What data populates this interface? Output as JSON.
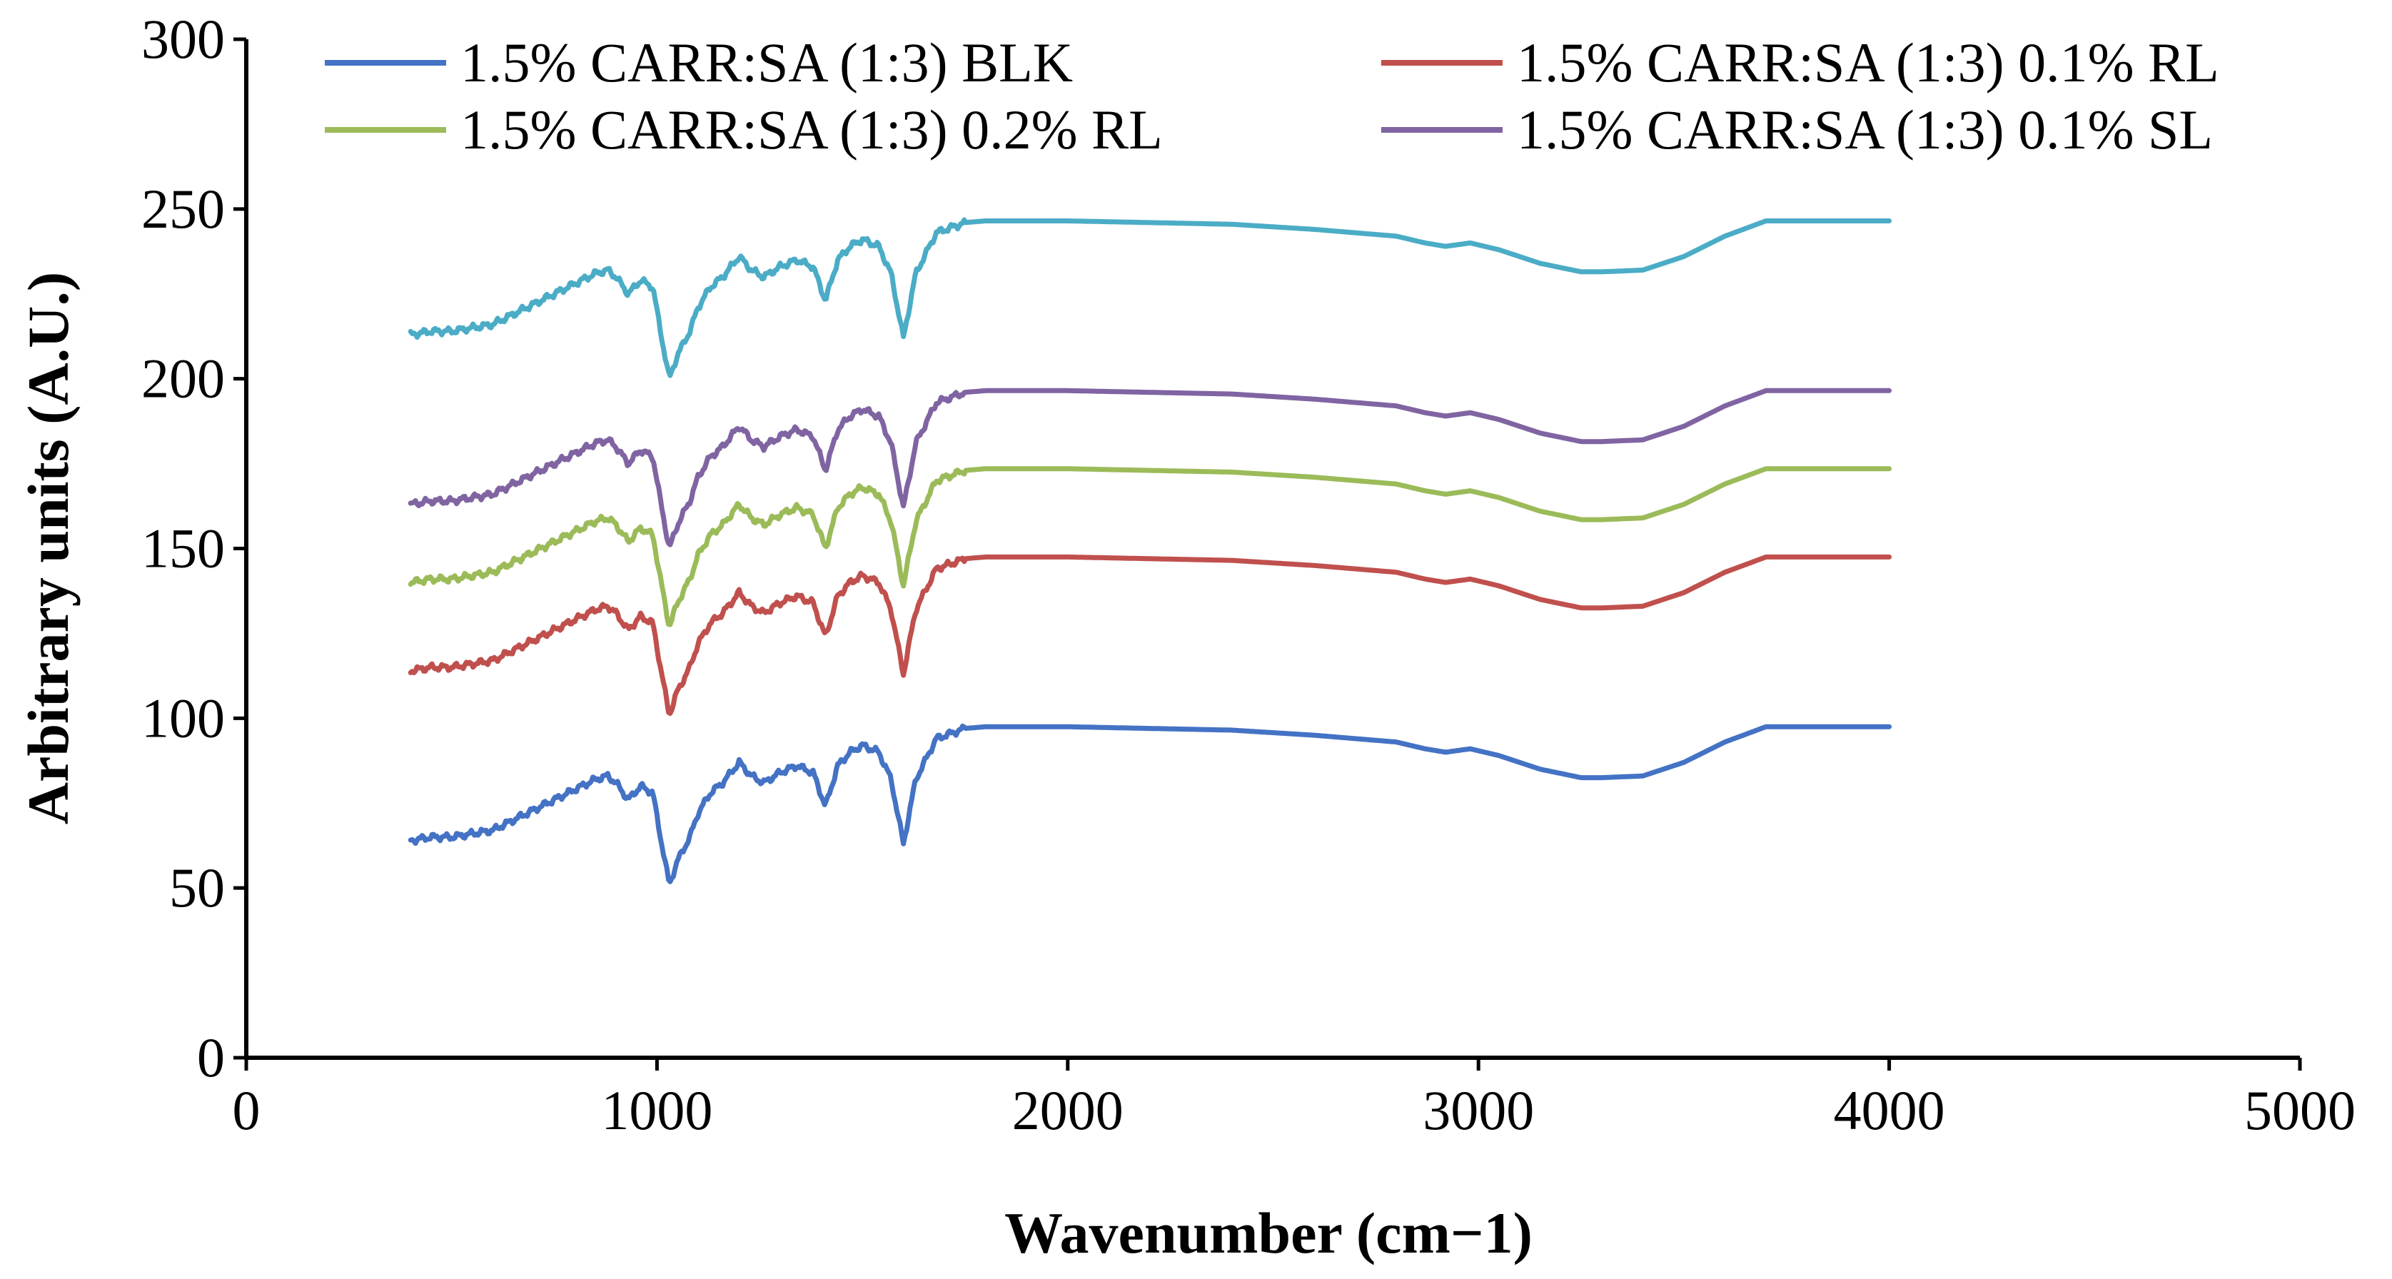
{
  "chart_data": {
    "type": "line",
    "title": "",
    "xlabel": "Wavenumber (cm−1)",
    "ylabel": "Arbitrary units (A.U.)",
    "xlim": [
      0,
      5000
    ],
    "ylim": [
      0,
      300
    ],
    "xticks": [
      0,
      1000,
      2000,
      3000,
      4000,
      5000
    ],
    "yticks": [
      0,
      50,
      100,
      150,
      200,
      250,
      300
    ],
    "xtick_labels": [
      "0",
      "1000",
      "2000",
      "3000",
      "4000",
      "5000"
    ],
    "ytick_labels": [
      "0",
      "50",
      "100",
      "150",
      "200",
      "250",
      "300"
    ],
    "grid": false,
    "legend_position": "top",
    "base_x": [
      400,
      450,
      500,
      550,
      600,
      650,
      700,
      750,
      800,
      850,
      880,
      900,
      930,
      960,
      990,
      1010,
      1030,
      1050,
      1080,
      1100,
      1130,
      1160,
      1200,
      1230,
      1260,
      1300,
      1340,
      1380,
      1410,
      1440,
      1470,
      1500,
      1540,
      1570,
      1600,
      1630,
      1680,
      1750,
      1800,
      2000,
      2200,
      2400,
      2600,
      2800,
      2870,
      2920,
      2980,
      3050,
      3150,
      3250,
      3300,
      3400,
      3500,
      3600,
      3700,
      4000
    ],
    "base_y": [
      64,
      65,
      65,
      66,
      67,
      70,
      73,
      76,
      79,
      82,
      83,
      81,
      76,
      80,
      78,
      64,
      51,
      58,
      65,
      72,
      78,
      81,
      87,
      83,
      81,
      84,
      86,
      84,
      74,
      86,
      90,
      92,
      90,
      82,
      63,
      82,
      94,
      97,
      97.5,
      97.5,
      97,
      96.5,
      95,
      93,
      91,
      90,
      91,
      89,
      85,
      82.5,
      82.5,
      83,
      87,
      93,
      97.5,
      97.5
    ],
    "series": [
      {
        "name": "1.5% CARR:SA (1:3) BLK",
        "color": "#4472c4",
        "offset": 0
      },
      {
        "name": "1.5% CARR:SA (1:3) 0.1% RL",
        "color": "#c0504d",
        "offset": 50
      },
      {
        "name": "1.5% CARR:SA (1:3) 0.2% RL",
        "color": "#9bbb59",
        "offset": 76
      },
      {
        "name": "1.5% CARR:SA (1:3) 0.1% SL",
        "color": "#8064a2",
        "offset": 99
      },
      {
        "name": "",
        "color": "#4bacc6",
        "offset": 149
      }
    ]
  }
}
